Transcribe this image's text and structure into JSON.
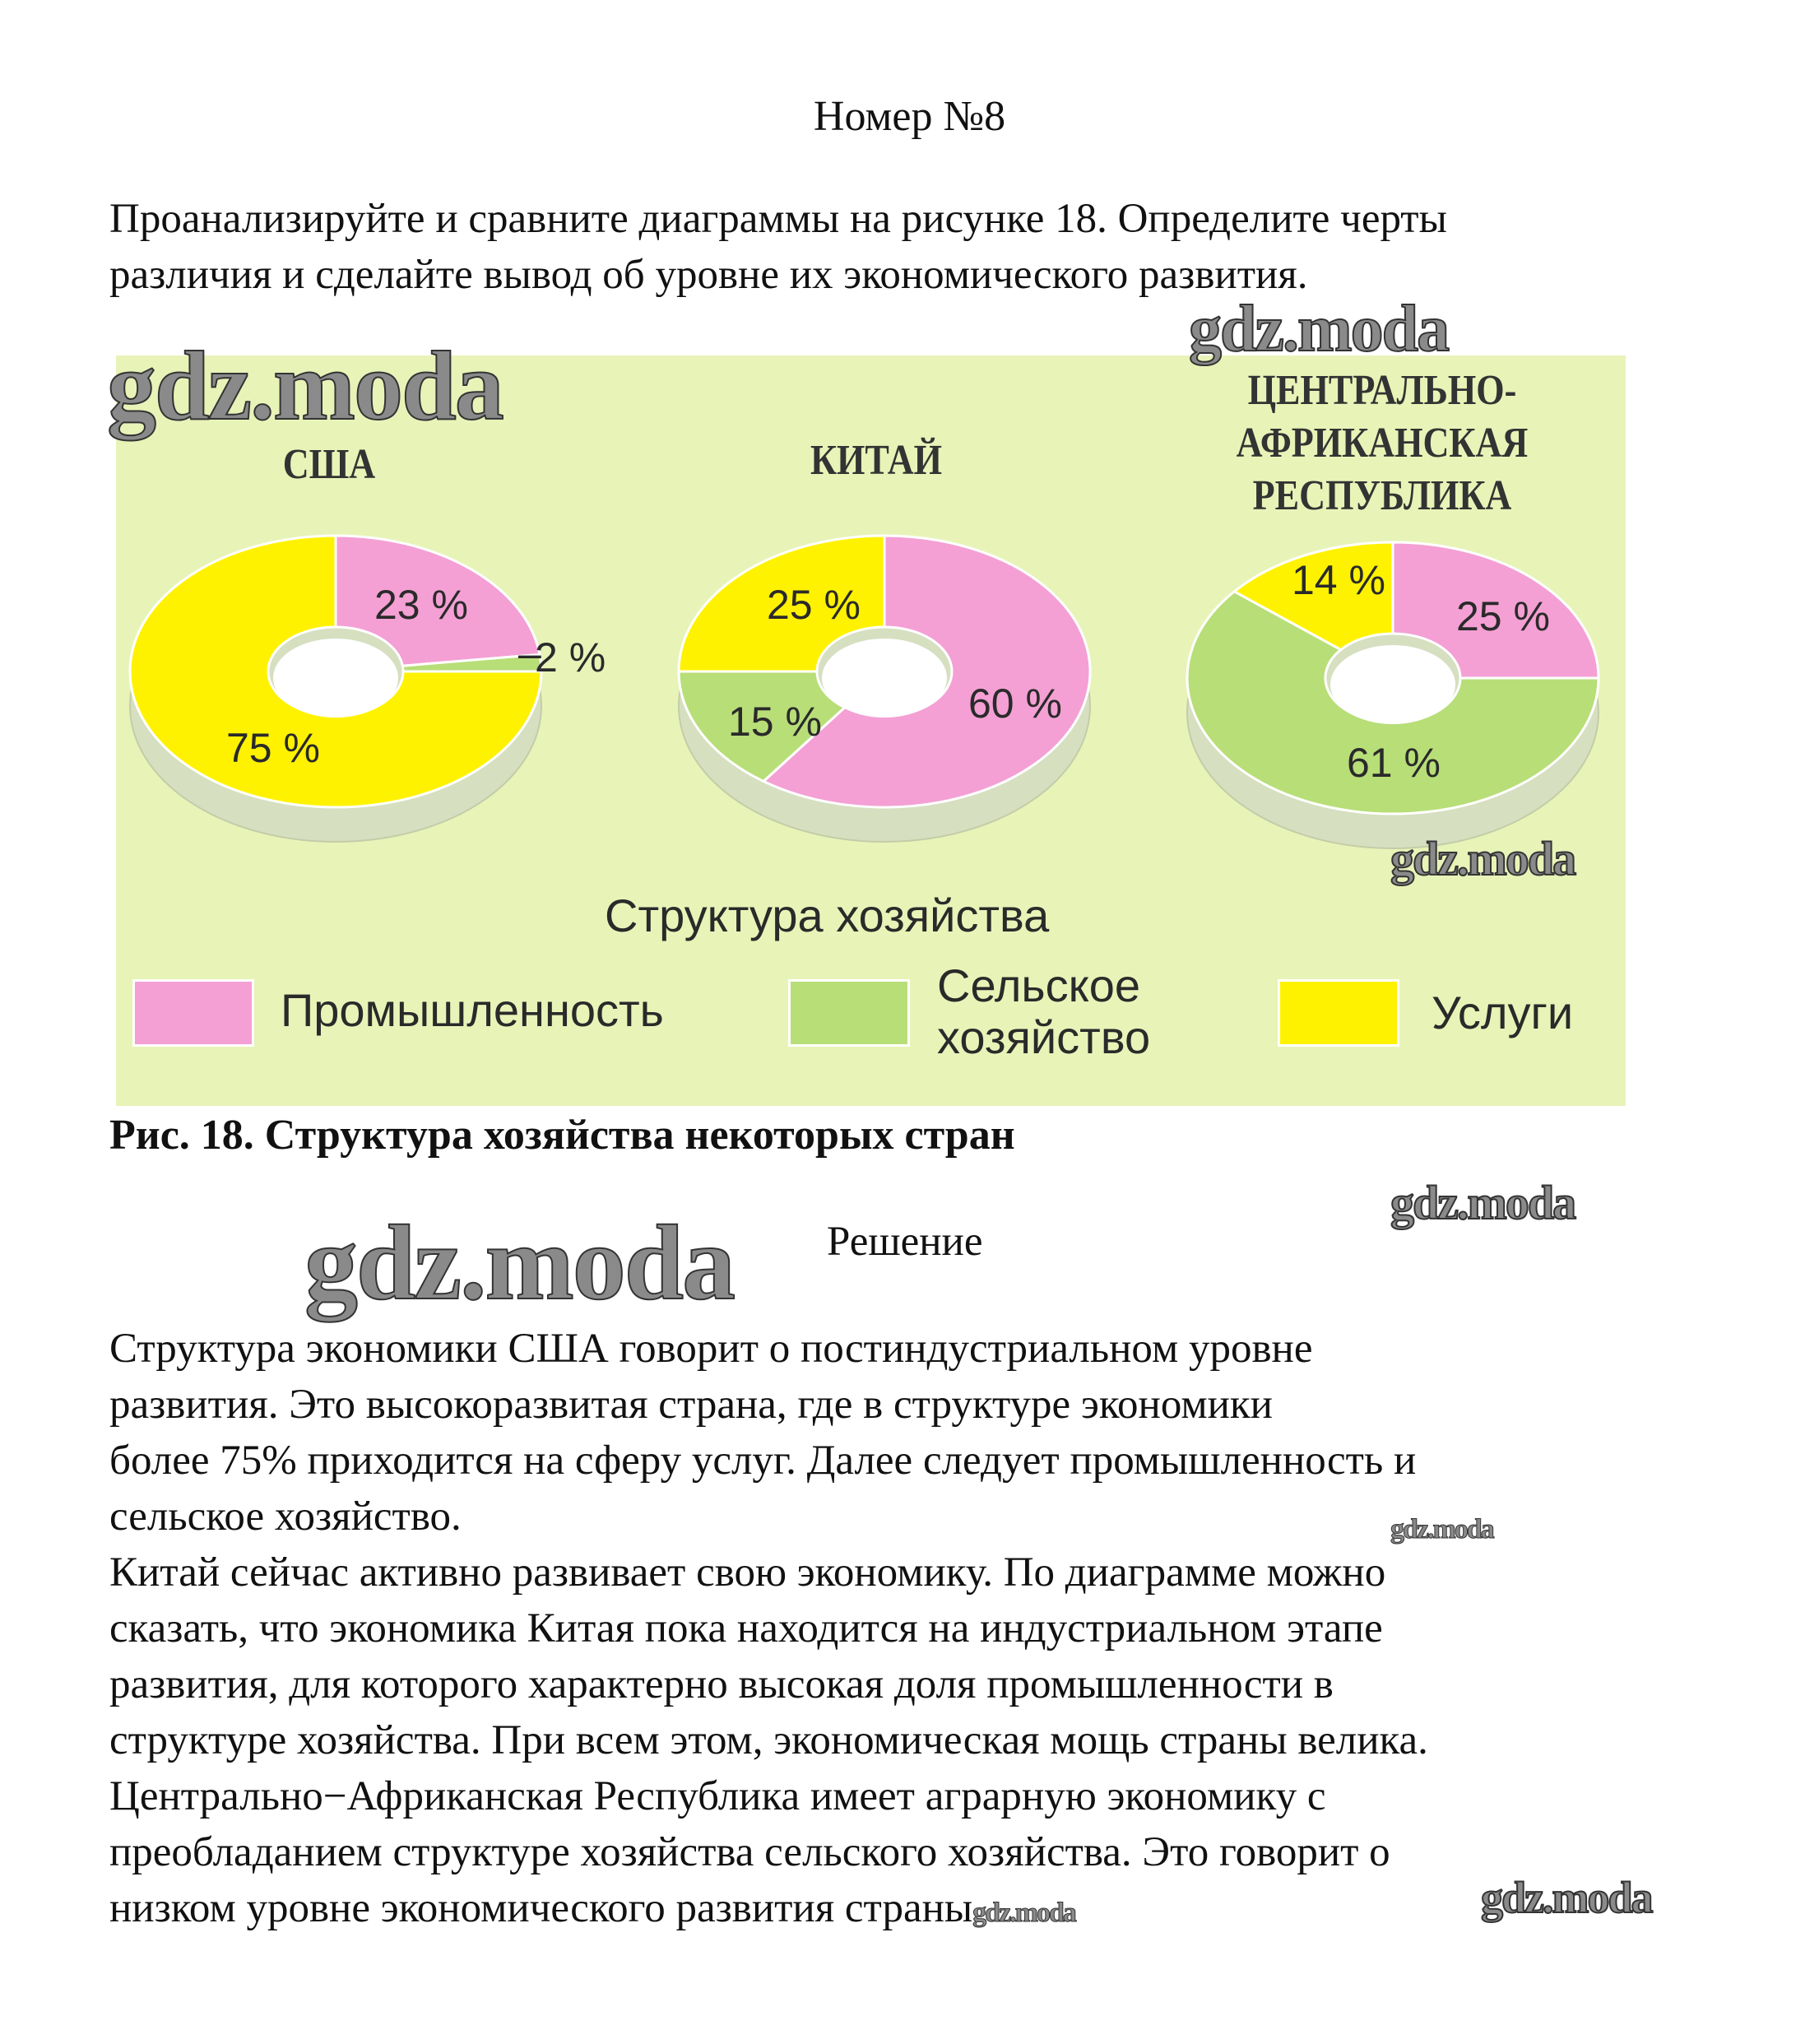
{
  "title": "Номер №8",
  "task": [
    "Проанализируйте и сравните диаграммы на рисунке 18. Определите черты",
    "различия и сделайте вывод об уровне их экономического развития."
  ],
  "figure": {
    "legend_title": "Структура хозяйства",
    "legend": [
      {
        "label": "Промышленность",
        "color": "#f4a0d4"
      },
      {
        "label_lines": [
          "Сельское",
          "хозяйство"
        ],
        "color": "#b8de78"
      },
      {
        "label": "Услуги",
        "color": "#fff200"
      }
    ],
    "caption": "Рис. 18. Структура хозяйства некоторых стран"
  },
  "chart_data": {
    "type": "pie",
    "title": "Структура хозяйства",
    "categories": [
      "Промышленность",
      "Сельское хозяйство",
      "Услуги"
    ],
    "colors": [
      "#f4a0d4",
      "#b8de78",
      "#fff200"
    ],
    "charts": [
      {
        "name": "США",
        "values": [
          23,
          2,
          75
        ],
        "labels": [
          "23 %",
          "2 %",
          "75 %"
        ]
      },
      {
        "name": "КИТАЙ",
        "values": [
          60,
          15,
          25
        ],
        "labels": [
          "60 %",
          "15 %",
          "25 %"
        ]
      },
      {
        "name_lines": [
          "ЦЕНТРАЛЬНО-",
          "АФРИКАНСКАЯ",
          "РЕСПУБЛИКА"
        ],
        "values": [
          25,
          61,
          14
        ],
        "labels": [
          "25 %",
          "61 %",
          "14 %"
        ]
      }
    ]
  },
  "solution_heading": "Решение",
  "solution": [
    "Структура экономики США говорит о постиндустриальном уровне",
    "развития. Это высокоразвитая страна, где в структуре экономики",
    "более 75% приходится на сферу услуг. Далее следует промышленность и",
    "сельское хозяйство.",
    "Китай сейчас активно развивает свою экономику. По диаграмме можно",
    "сказать, что экономика Китая пока находится на индустриальном этапе",
    "развития, для которого характерно высокая доля промышленности в",
    "структуре хозяйства. При всем этом, экономическая мощь страны велика.",
    "Центрально−Африканская Республика имеет аграрную экономику с",
    "преобладанием структуре хозяйства сельского хозяйства. Это говорит о",
    "низком уровне экономического развития страны"
  ],
  "watermark": "gdz.moda"
}
